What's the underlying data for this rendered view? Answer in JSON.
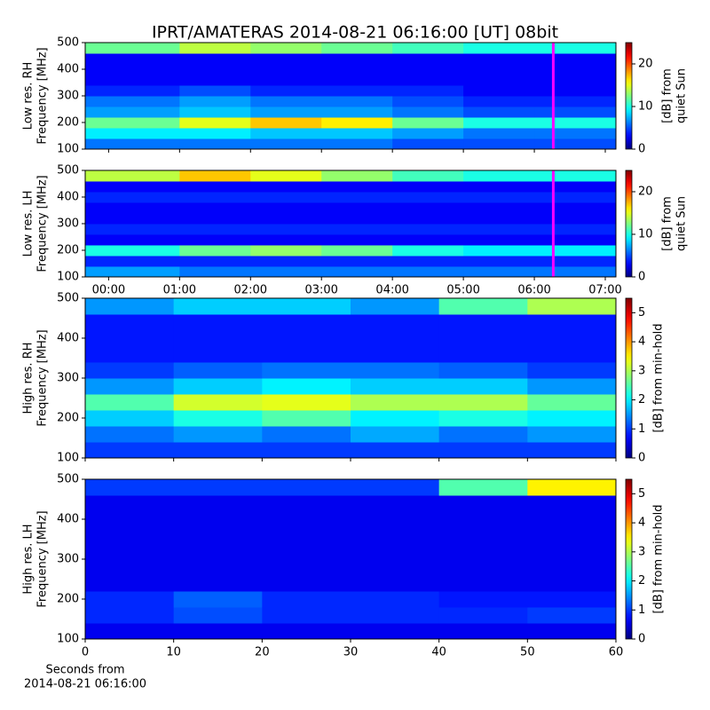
{
  "title": "IPRT/AMATERAS 2014-08-21 06:16:00 [UT]   08bit",
  "chart_data": [
    {
      "type": "heatmap",
      "ylabel": [
        "Low res. RH",
        "Frequency [MHz]"
      ],
      "cbar_label": [
        "[dB] from",
        "quiet Sun"
      ],
      "xlim": [
        -0.33,
        7.15
      ],
      "xticks": [
        {
          "value": 0,
          "label": "00:00"
        },
        {
          "value": 1,
          "label": "01:00"
        },
        {
          "value": 2,
          "label": "02:00"
        },
        {
          "value": 3,
          "label": "03:00"
        },
        {
          "value": 4,
          "label": "04:00"
        },
        {
          "value": 5,
          "label": "05:00"
        },
        {
          "value": 6,
          "label": "06:00"
        },
        {
          "value": 7,
          "label": "07:00"
        }
      ],
      "show_xticklabels": false,
      "ylim": [
        100,
        500
      ],
      "yticks": [
        100,
        200,
        300,
        400,
        500
      ],
      "clim": [
        0,
        25
      ],
      "cticks": [
        0,
        10,
        20
      ],
      "xbins": [
        -0.33,
        1,
        2,
        3,
        4,
        5,
        6,
        7.15
      ],
      "ybins": [
        100,
        140,
        180,
        220,
        260,
        300,
        340,
        380,
        420,
        460,
        500
      ],
      "values": [
        [
          6,
          6,
          6,
          6,
          5,
          5,
          5
        ],
        [
          9,
          9,
          8,
          8,
          7,
          6,
          6
        ],
        [
          12,
          15,
          17,
          16,
          12,
          10,
          10
        ],
        [
          7,
          8,
          7,
          7,
          6,
          5,
          5
        ],
        [
          6,
          7,
          6,
          6,
          5,
          4,
          4
        ],
        [
          4,
          5,
          4,
          4,
          4,
          3,
          3
        ],
        [
          3,
          3,
          3,
          3,
          3,
          3,
          3
        ],
        [
          3,
          3,
          3,
          3,
          3,
          3,
          3
        ],
        [
          3,
          3,
          3,
          3,
          3,
          3,
          3
        ],
        [
          12,
          14,
          13,
          12,
          11,
          10,
          10
        ]
      ],
      "marker": {
        "x": 6.267,
        "color": "#ff00ff"
      }
    },
    {
      "type": "heatmap",
      "ylabel": [
        "Low res. LH",
        "Frequency [MHz]"
      ],
      "cbar_label": [
        "[dB] from",
        "quiet Sun"
      ],
      "xlim": [
        -0.33,
        7.15
      ],
      "xticks": [
        {
          "value": 0,
          "label": "00:00"
        },
        {
          "value": 1,
          "label": "01:00"
        },
        {
          "value": 2,
          "label": "02:00"
        },
        {
          "value": 3,
          "label": "03:00"
        },
        {
          "value": 4,
          "label": "04:00"
        },
        {
          "value": 5,
          "label": "05:00"
        },
        {
          "value": 6,
          "label": "06:00"
        },
        {
          "value": 7,
          "label": "07:00"
        }
      ],
      "show_xticklabels": true,
      "ylim": [
        100,
        500
      ],
      "yticks": [
        100,
        200,
        300,
        400,
        500
      ],
      "clim": [
        0,
        25
      ],
      "cticks": [
        0,
        10,
        20
      ],
      "xbins": [
        -0.33,
        1,
        2,
        3,
        4,
        5,
        6,
        7.15
      ],
      "ybins": [
        100,
        140,
        180,
        220,
        260,
        300,
        340,
        380,
        420,
        460,
        500
      ],
      "values": [
        [
          7,
          6,
          6,
          6,
          6,
          6,
          6
        ],
        [
          4,
          4,
          4,
          4,
          4,
          4,
          4
        ],
        [
          10,
          12,
          13,
          12,
          10,
          9,
          9
        ],
        [
          3,
          3,
          3,
          3,
          3,
          3,
          3
        ],
        [
          4,
          4,
          4,
          4,
          4,
          4,
          4
        ],
        [
          3,
          3,
          3,
          3,
          3,
          3,
          3
        ],
        [
          3,
          3,
          3,
          3,
          3,
          3,
          3
        ],
        [
          4,
          4,
          4,
          4,
          4,
          4,
          4
        ],
        [
          3,
          3,
          3,
          3,
          3,
          3,
          3
        ],
        [
          14,
          17,
          15,
          13,
          11,
          10,
          10
        ]
      ],
      "marker": {
        "x": 6.267,
        "color": "#ff00ff"
      }
    },
    {
      "type": "heatmap",
      "ylabel": [
        "High res. RH",
        "Frequency [MHz]"
      ],
      "cbar_label": [
        "[dB] from min-hold"
      ],
      "xlim": [
        0,
        60
      ],
      "xticks": [
        0,
        10,
        20,
        30,
        40,
        50,
        60
      ],
      "show_xticklabels": false,
      "ylim": [
        100,
        500
      ],
      "yticks": [
        100,
        200,
        300,
        400,
        500
      ],
      "clim": [
        0,
        5.5
      ],
      "cticks": [
        0,
        1,
        2,
        3,
        4,
        5
      ],
      "xbins": [
        0,
        10,
        20,
        30,
        40,
        50,
        60
      ],
      "ybins": [
        100,
        140,
        180,
        220,
        260,
        300,
        340,
        380,
        420,
        460,
        500
      ],
      "values": [
        [
          1,
          1,
          1,
          1,
          1,
          1
        ],
        [
          1.3,
          1.5,
          1.3,
          1.6,
          1.3,
          1.5
        ],
        [
          1.8,
          2.2,
          2.5,
          2,
          2.2,
          2
        ],
        [
          2.5,
          3.2,
          3.3,
          3,
          3,
          2.6
        ],
        [
          1.5,
          1.8,
          2,
          1.8,
          1.8,
          1.5
        ],
        [
          1,
          1.2,
          1.3,
          1.3,
          1.2,
          1
        ],
        [
          0.8,
          0.8,
          0.8,
          0.8,
          0.8,
          0.8
        ],
        [
          0.8,
          0.8,
          0.8,
          0.8,
          0.8,
          0.8
        ],
        [
          0.8,
          0.8,
          0.8,
          0.8,
          0.8,
          0.8
        ],
        [
          1.5,
          1.8,
          1.8,
          1.5,
          2.5,
          3
        ]
      ]
    },
    {
      "type": "heatmap",
      "ylabel": [
        "High res. LH",
        "Frequency [MHz]"
      ],
      "cbar_label": [
        "[dB] from min-hold"
      ],
      "xlabel": [
        "Seconds from",
        "2014-08-21 06:16:00"
      ],
      "xlim": [
        0,
        60
      ],
      "xticks": [
        0,
        10,
        20,
        30,
        40,
        50,
        60
      ],
      "show_xticklabels": true,
      "ylim": [
        100,
        500
      ],
      "yticks": [
        100,
        200,
        300,
        400,
        500
      ],
      "clim": [
        0,
        5.5
      ],
      "cticks": [
        0,
        1,
        2,
        3,
        4,
        5
      ],
      "xbins": [
        0,
        10,
        20,
        30,
        40,
        50,
        60
      ],
      "ybins": [
        100,
        140,
        180,
        220,
        260,
        300,
        340,
        380,
        420,
        460,
        500
      ],
      "values": [
        [
          0.6,
          0.6,
          0.6,
          0.6,
          0.6,
          0.6
        ],
        [
          0.9,
          1.1,
          0.9,
          0.9,
          0.9,
          1
        ],
        [
          0.9,
          1.2,
          0.9,
          0.9,
          0.8,
          0.8
        ],
        [
          0.6,
          0.6,
          0.6,
          0.6,
          0.6,
          0.6
        ],
        [
          0.6,
          0.6,
          0.6,
          0.6,
          0.6,
          0.6
        ],
        [
          0.6,
          0.6,
          0.6,
          0.6,
          0.6,
          0.6
        ],
        [
          0.6,
          0.6,
          0.6,
          0.6,
          0.6,
          0.6
        ],
        [
          0.6,
          0.6,
          0.6,
          0.6,
          0.6,
          0.6
        ],
        [
          0.6,
          0.6,
          0.6,
          0.6,
          0.6,
          0.6
        ],
        [
          1,
          1,
          1,
          1,
          2.5,
          3.5
        ]
      ]
    }
  ]
}
